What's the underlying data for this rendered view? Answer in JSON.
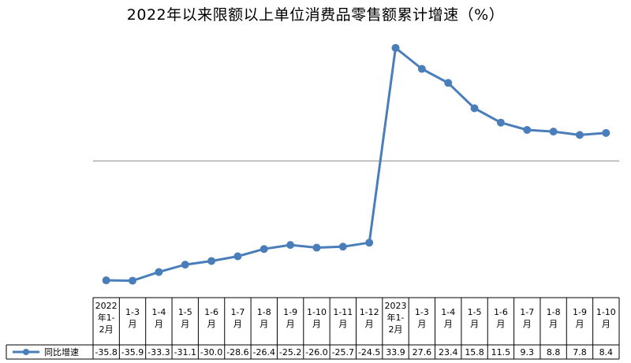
{
  "chart_data": {
    "type": "line",
    "title": "2022年以来限额以上单位消费品零售额累计增速（%）",
    "categories": [
      [
        "2022",
        "年1-",
        "2月"
      ],
      [
        "1-3",
        "月"
      ],
      [
        "1-4",
        "月"
      ],
      [
        "1-5",
        "月"
      ],
      [
        "1-6",
        "月"
      ],
      [
        "1-7",
        "月"
      ],
      [
        "1-8",
        "月"
      ],
      [
        "1-9",
        "月"
      ],
      [
        "1-10",
        "月"
      ],
      [
        "1-11",
        "月"
      ],
      [
        "1-12",
        "月"
      ],
      [
        "2023",
        "年1-",
        "2月"
      ],
      [
        "1-3",
        "月"
      ],
      [
        "1-4",
        "月"
      ],
      [
        "1-5",
        "月"
      ],
      [
        "1-6",
        "月"
      ],
      [
        "1-7",
        "月"
      ],
      [
        "1-8",
        "月"
      ],
      [
        "1-9",
        "月"
      ],
      [
        "1-10",
        "月"
      ]
    ],
    "series": [
      {
        "name": "同比增速",
        "values": [
          -35.8,
          -35.9,
          -33.3,
          -31.1,
          -30.0,
          -28.6,
          -26.4,
          -25.2,
          -26.0,
          -25.7,
          -24.5,
          33.9,
          27.6,
          23.4,
          15.8,
          11.5,
          9.3,
          8.8,
          7.8,
          8.4
        ],
        "value_labels": [
          "-35.8",
          "-35.9",
          "-33.3",
          "-31.1",
          "-30.0",
          "-28.6",
          "-26.4",
          "-25.2",
          "-26.0",
          "-25.7",
          "-24.5",
          "33.9",
          "27.6",
          "23.4",
          "15.8",
          "11.5",
          "9.3",
          "8.8",
          "7.8",
          "8.4"
        ],
        "color": "#4a7ebb"
      }
    ],
    "ylim": [
      -45,
      40
    ],
    "grid": false,
    "zero_line": true,
    "legend": "data-table-left",
    "data_table": true
  }
}
